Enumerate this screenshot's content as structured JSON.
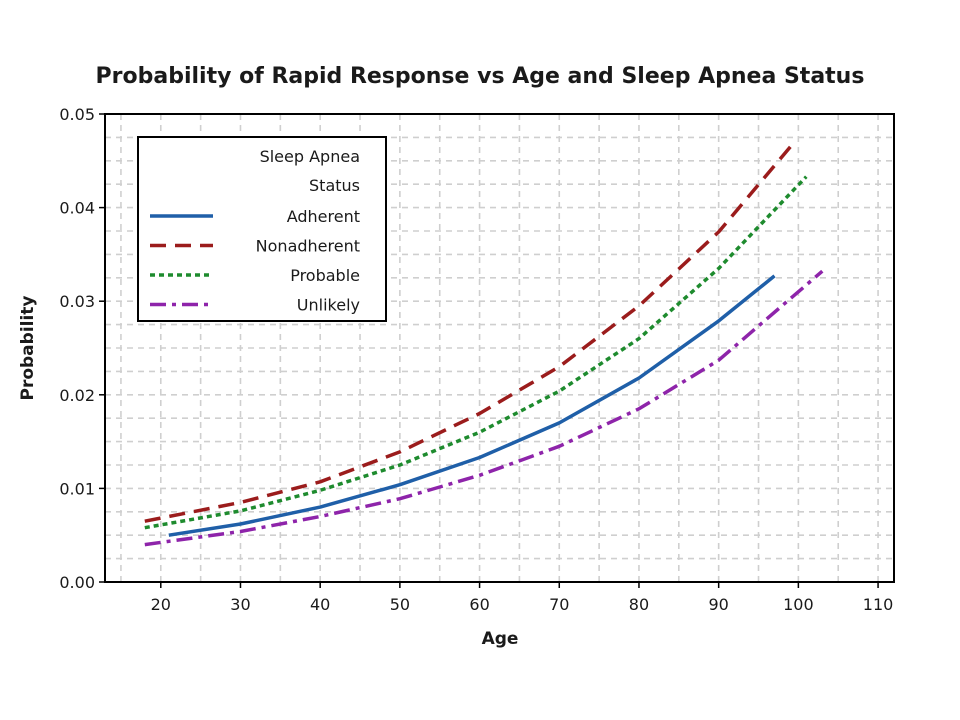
{
  "chart_data": {
    "type": "line",
    "title": "Probability of Rapid Response vs Age and Sleep Apnea Status",
    "xlabel": "Age",
    "ylabel": "Probability",
    "xlim": [
      13,
      112
    ],
    "ylim": [
      0.0,
      0.05
    ],
    "x_ticks": [
      20,
      30,
      40,
      50,
      60,
      70,
      80,
      90,
      100,
      110
    ],
    "y_ticks": [
      0.0,
      0.01,
      0.02,
      0.03,
      0.04,
      0.05
    ],
    "x_tick_labels": [
      "20",
      "30",
      "40",
      "50",
      "60",
      "70",
      "80",
      "90",
      "100",
      "110"
    ],
    "y_tick_labels": [
      "0.00",
      "0.01",
      "0.02",
      "0.03",
      "0.04",
      "0.05"
    ],
    "grid": true,
    "legend": {
      "title_line1": "Sleep Apnea",
      "title_line2": "Status",
      "placement": "top-left"
    },
    "series": [
      {
        "name": "Adherent",
        "color": "#1f5fa8",
        "dash": "solid",
        "x": [
          21,
          30,
          40,
          50,
          60,
          70,
          80,
          90,
          97
        ],
        "y": [
          0.005,
          0.0062,
          0.008,
          0.0104,
          0.0133,
          0.017,
          0.0218,
          0.0279,
          0.0327
        ]
      },
      {
        "name": "Nonadherent",
        "color": "#9b1c1c",
        "dash": "dashed",
        "x": [
          18,
          30,
          40,
          50,
          60,
          70,
          80,
          90,
          99
        ],
        "y": [
          0.0065,
          0.0085,
          0.0107,
          0.0139,
          0.018,
          0.023,
          0.0295,
          0.0374,
          0.0465
        ]
      },
      {
        "name": "Probable",
        "color": "#1e8b2e",
        "dash": "dotted",
        "x": [
          18,
          30,
          40,
          50,
          60,
          70,
          80,
          90,
          101
        ],
        "y": [
          0.0058,
          0.0076,
          0.0098,
          0.0125,
          0.016,
          0.0204,
          0.026,
          0.0335,
          0.0433
        ]
      },
      {
        "name": "Unlikely",
        "color": "#8e24aa",
        "dash": "dashdot",
        "x": [
          18,
          30,
          40,
          50,
          60,
          70,
          80,
          90,
          103
        ],
        "y": [
          0.004,
          0.0054,
          0.007,
          0.0089,
          0.0114,
          0.0145,
          0.0185,
          0.0237,
          0.0332
        ]
      }
    ]
  }
}
